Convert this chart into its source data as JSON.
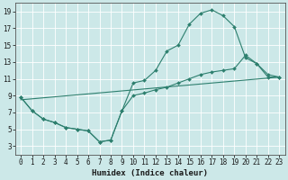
{
  "xlabel": "Humidex (Indice chaleur)",
  "background_color": "#cce8e8",
  "grid_color": "#ffffff",
  "line_color": "#2d7f6e",
  "xlim": [
    -0.5,
    23.5
  ],
  "ylim": [
    2.0,
    20.0
  ],
  "xticks": [
    0,
    1,
    2,
    3,
    4,
    5,
    6,
    7,
    8,
    9,
    10,
    11,
    12,
    13,
    14,
    15,
    16,
    17,
    18,
    19,
    20,
    21,
    22,
    23
  ],
  "yticks": [
    3,
    5,
    7,
    9,
    11,
    13,
    15,
    17,
    19
  ],
  "curve1_x": [
    0,
    1,
    2,
    3,
    4,
    5,
    6,
    7,
    8,
    9,
    10,
    11,
    12,
    13,
    14,
    15,
    16,
    17,
    18,
    19,
    20,
    21,
    22,
    23
  ],
  "curve1_y": [
    8.8,
    7.2,
    6.2,
    5.8,
    5.2,
    5.0,
    4.8,
    3.5,
    3.7,
    7.2,
    10.5,
    10.8,
    12.0,
    14.3,
    15.0,
    17.5,
    18.8,
    19.2,
    18.5,
    17.2,
    13.5,
    12.8,
    11.2,
    11.2
  ],
  "curve2_x": [
    0,
    1,
    2,
    3,
    4,
    5,
    6,
    7,
    8,
    9,
    10,
    11,
    12,
    13,
    14,
    15,
    16,
    17,
    18,
    19,
    20,
    21,
    22,
    23
  ],
  "curve2_y": [
    8.8,
    7.2,
    6.2,
    5.8,
    5.2,
    5.0,
    4.8,
    3.5,
    3.7,
    7.2,
    9.0,
    9.3,
    9.7,
    10.0,
    10.5,
    11.0,
    11.5,
    11.8,
    12.0,
    12.2,
    13.8,
    12.8,
    11.5,
    11.2
  ],
  "curve3_x": [
    0,
    23
  ],
  "curve3_y": [
    8.5,
    11.2
  ],
  "figsize": [
    3.2,
    2.0
  ],
  "dpi": 100,
  "tick_fontsize": 5.5,
  "xlabel_fontsize": 6.5
}
